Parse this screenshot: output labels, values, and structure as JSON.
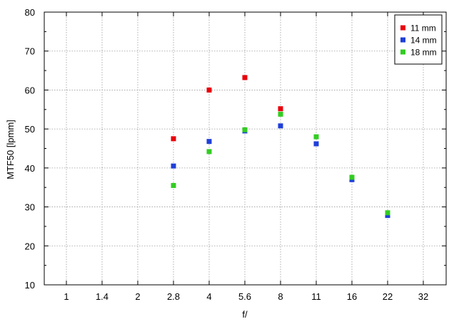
{
  "chart_data": {
    "type": "scatter",
    "xlabel": "f/",
    "ylabel": "MTF50 [lpmm]",
    "categories": [
      "1",
      "1.4",
      "2",
      "2.8",
      "4",
      "5.6",
      "8",
      "11",
      "16",
      "22",
      "32"
    ],
    "ylim": [
      10,
      80
    ],
    "yticks": [
      10,
      20,
      30,
      40,
      50,
      60,
      70,
      80
    ],
    "grid": true,
    "legend_position": "top-right",
    "series": [
      {
        "name": "11 mm",
        "color": "#e8000b",
        "points": [
          {
            "x": "2.8",
            "y": 47.5
          },
          {
            "x": "4",
            "y": 60.0
          },
          {
            "x": "5.6",
            "y": 63.2
          },
          {
            "x": "8",
            "y": 55.2
          },
          {
            "x": "16",
            "y": 37.5
          }
        ]
      },
      {
        "name": "14 mm",
        "color": "#1f3fd8",
        "points": [
          {
            "x": "2.8",
            "y": 40.5
          },
          {
            "x": "4",
            "y": 46.8
          },
          {
            "x": "5.6",
            "y": 49.5
          },
          {
            "x": "8",
            "y": 50.8
          },
          {
            "x": "11",
            "y": 46.2
          },
          {
            "x": "16",
            "y": 37.0
          },
          {
            "x": "22",
            "y": 27.8
          }
        ]
      },
      {
        "name": "18 mm",
        "color": "#33cc22",
        "points": [
          {
            "x": "2.8",
            "y": 35.5
          },
          {
            "x": "4",
            "y": 44.2
          },
          {
            "x": "5.6",
            "y": 49.8
          },
          {
            "x": "8",
            "y": 53.8
          },
          {
            "x": "11",
            "y": 48.0
          },
          {
            "x": "16",
            "y": 37.6
          },
          {
            "x": "22",
            "y": 28.5
          }
        ]
      }
    ]
  }
}
